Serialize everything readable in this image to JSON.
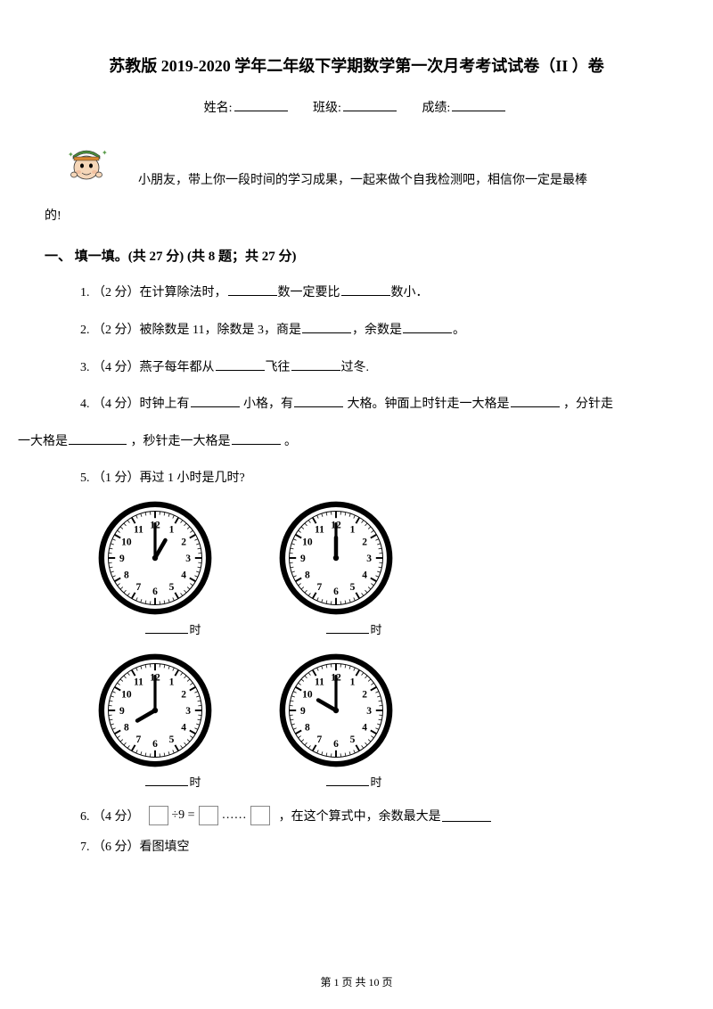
{
  "title": "苏教版 2019-2020 学年二年级下学期数学第一次月考考试试卷（II ）卷",
  "info": {
    "name_label": "姓名:",
    "class_label": "班级:",
    "score_label": "成绩:"
  },
  "intro1": "小朋友，带上你一段时间的学习成果，一起来做个自我检测吧，相信你一定是最棒",
  "intro2": "的!",
  "section1_title": "一、 填一填。(共 27 分) (共 8 题；共 27 分)",
  "q1_pre": "1.  （2 分）在计算除法时，",
  "q1_mid": "数一定要比",
  "q1_end": "数小．",
  "q2_pre": "2.  （2 分）被除数是 11，除数是 3，商是",
  "q2_mid": "，余数是",
  "q2_end": "。",
  "q3_pre": "3.  （4 分）燕子每年都从",
  "q3_mid": "飞往",
  "q3_end": "过冬.",
  "q4_pre": "4.   （4 分）时钟上有",
  "q4_p2": " 小格，有",
  "q4_p3": " 大格。钟面上时针走一大格是",
  "q4_p4": " ，分针走",
  "q4_line2_pre": "一大格是",
  "q4_line2_mid": " ，秒针走一大格是",
  "q4_line2_end": " 。",
  "q5": "5.  （1 分）再过 1 小时是几时?",
  "clock_label": "时",
  "clocks": [
    {
      "hour": 1,
      "minute": 0
    },
    {
      "hour": 12,
      "minute": 0
    },
    {
      "hour": 8,
      "minute": 0
    },
    {
      "hour": 10,
      "minute": 0
    }
  ],
  "q6_pre": "6.  （4 分）",
  "q6_formula_div": "÷9 =",
  "q6_formula_dots": "……",
  "q6_post": " ，在这个算式中，余数最大是",
  "q7": "7.  （6 分）看图填空",
  "footer": "第 1 页 共 10 页",
  "colors": {
    "mascot_skin": "#f5d6b8",
    "mascot_hat": "#4a8c3a",
    "mascot_hat_band": "#d98830",
    "clock_ring": "#000000"
  }
}
